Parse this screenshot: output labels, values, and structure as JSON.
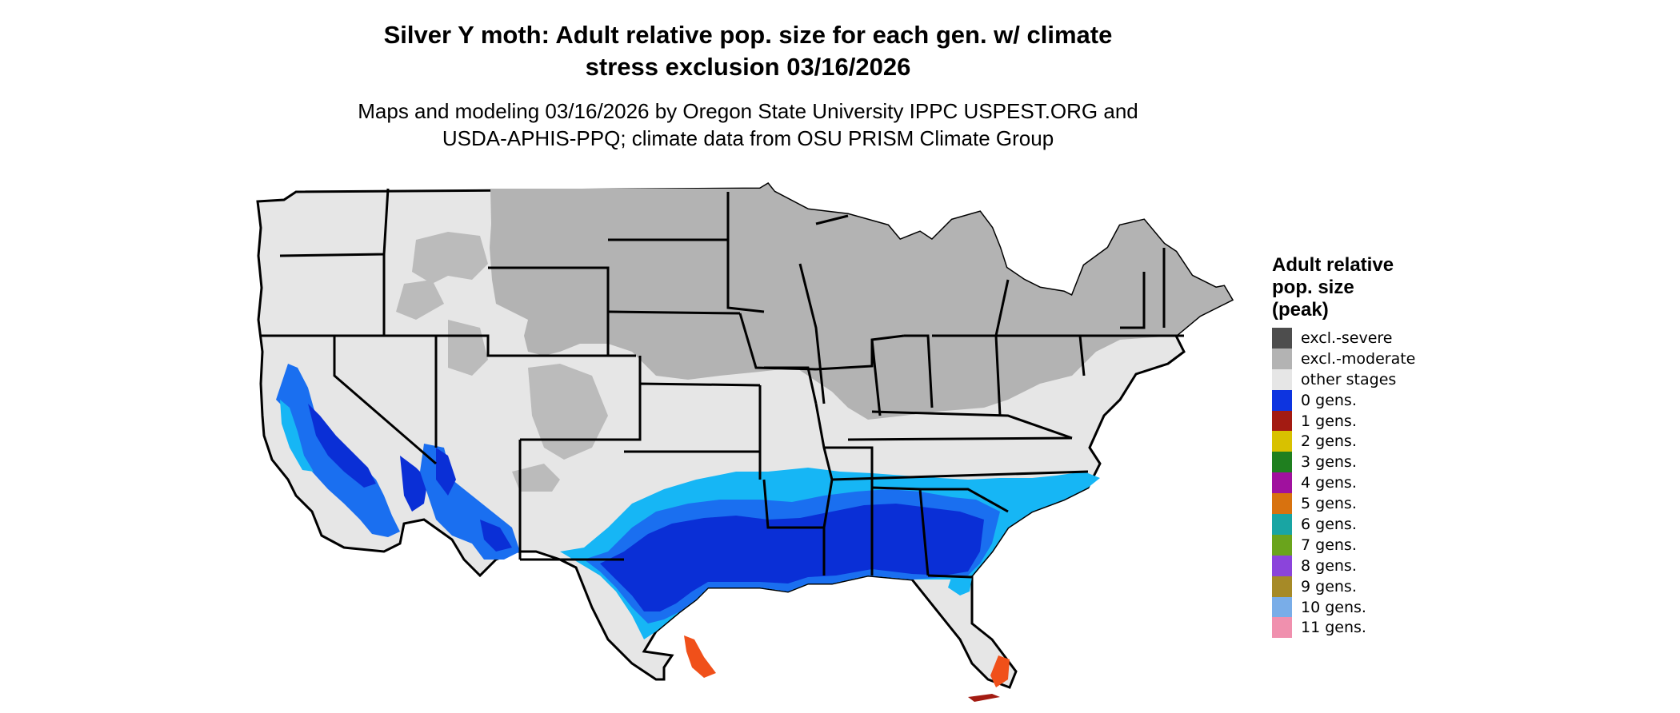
{
  "title": {
    "line1": "Silver Y moth: Adult relative pop. size for each gen. w/ climate",
    "line2": "stress exclusion 03/16/2026"
  },
  "subtitle": {
    "line1": "Maps and modeling 03/16/2026 by Oregon State University IPPC USPEST.ORG and",
    "line2": "USDA-APHIS-PPQ; climate data from OSU PRISM Climate Group"
  },
  "legend": {
    "title_line1": "Adult relative",
    "title_line2": "pop. size",
    "title_line3": "(peak)",
    "items": [
      {
        "label": "excl.-severe",
        "color": "#4d4d4d"
      },
      {
        "label": "excl.-moderate",
        "color": "#b3b3b3"
      },
      {
        "label": "other stages",
        "color": "#e6e6e6"
      },
      {
        "label": "0 gens.",
        "color": "#0d34e0"
      },
      {
        "label": "1 gens.",
        "color": "#a31b12"
      },
      {
        "label": "2 gens.",
        "color": "#d8c100"
      },
      {
        "label": "3 gens.",
        "color": "#1f7f1f"
      },
      {
        "label": "4 gens.",
        "color": "#a0119e"
      },
      {
        "label": "5 gens.",
        "color": "#d8720f"
      },
      {
        "label": "6 gens.",
        "color": "#19a5a3"
      },
      {
        "label": "7 gens.",
        "color": "#6aa41c"
      },
      {
        "label": "8 gens.",
        "color": "#8b44db"
      },
      {
        "label": "9 gens.",
        "color": "#a68a27"
      },
      {
        "label": "10 gens.",
        "color": "#79ade8"
      },
      {
        "label": "11 gens.",
        "color": "#f090ae"
      }
    ]
  },
  "map_colors": {
    "other_stages": "#e6e6e6",
    "excl_moderate": "#b3b3b3",
    "pop_dark": "#0a2fd6",
    "pop_mid": "#1a6ff0",
    "pop_light": "#16b6f5",
    "hot_spot": "#f0501a",
    "border": "#000000"
  }
}
